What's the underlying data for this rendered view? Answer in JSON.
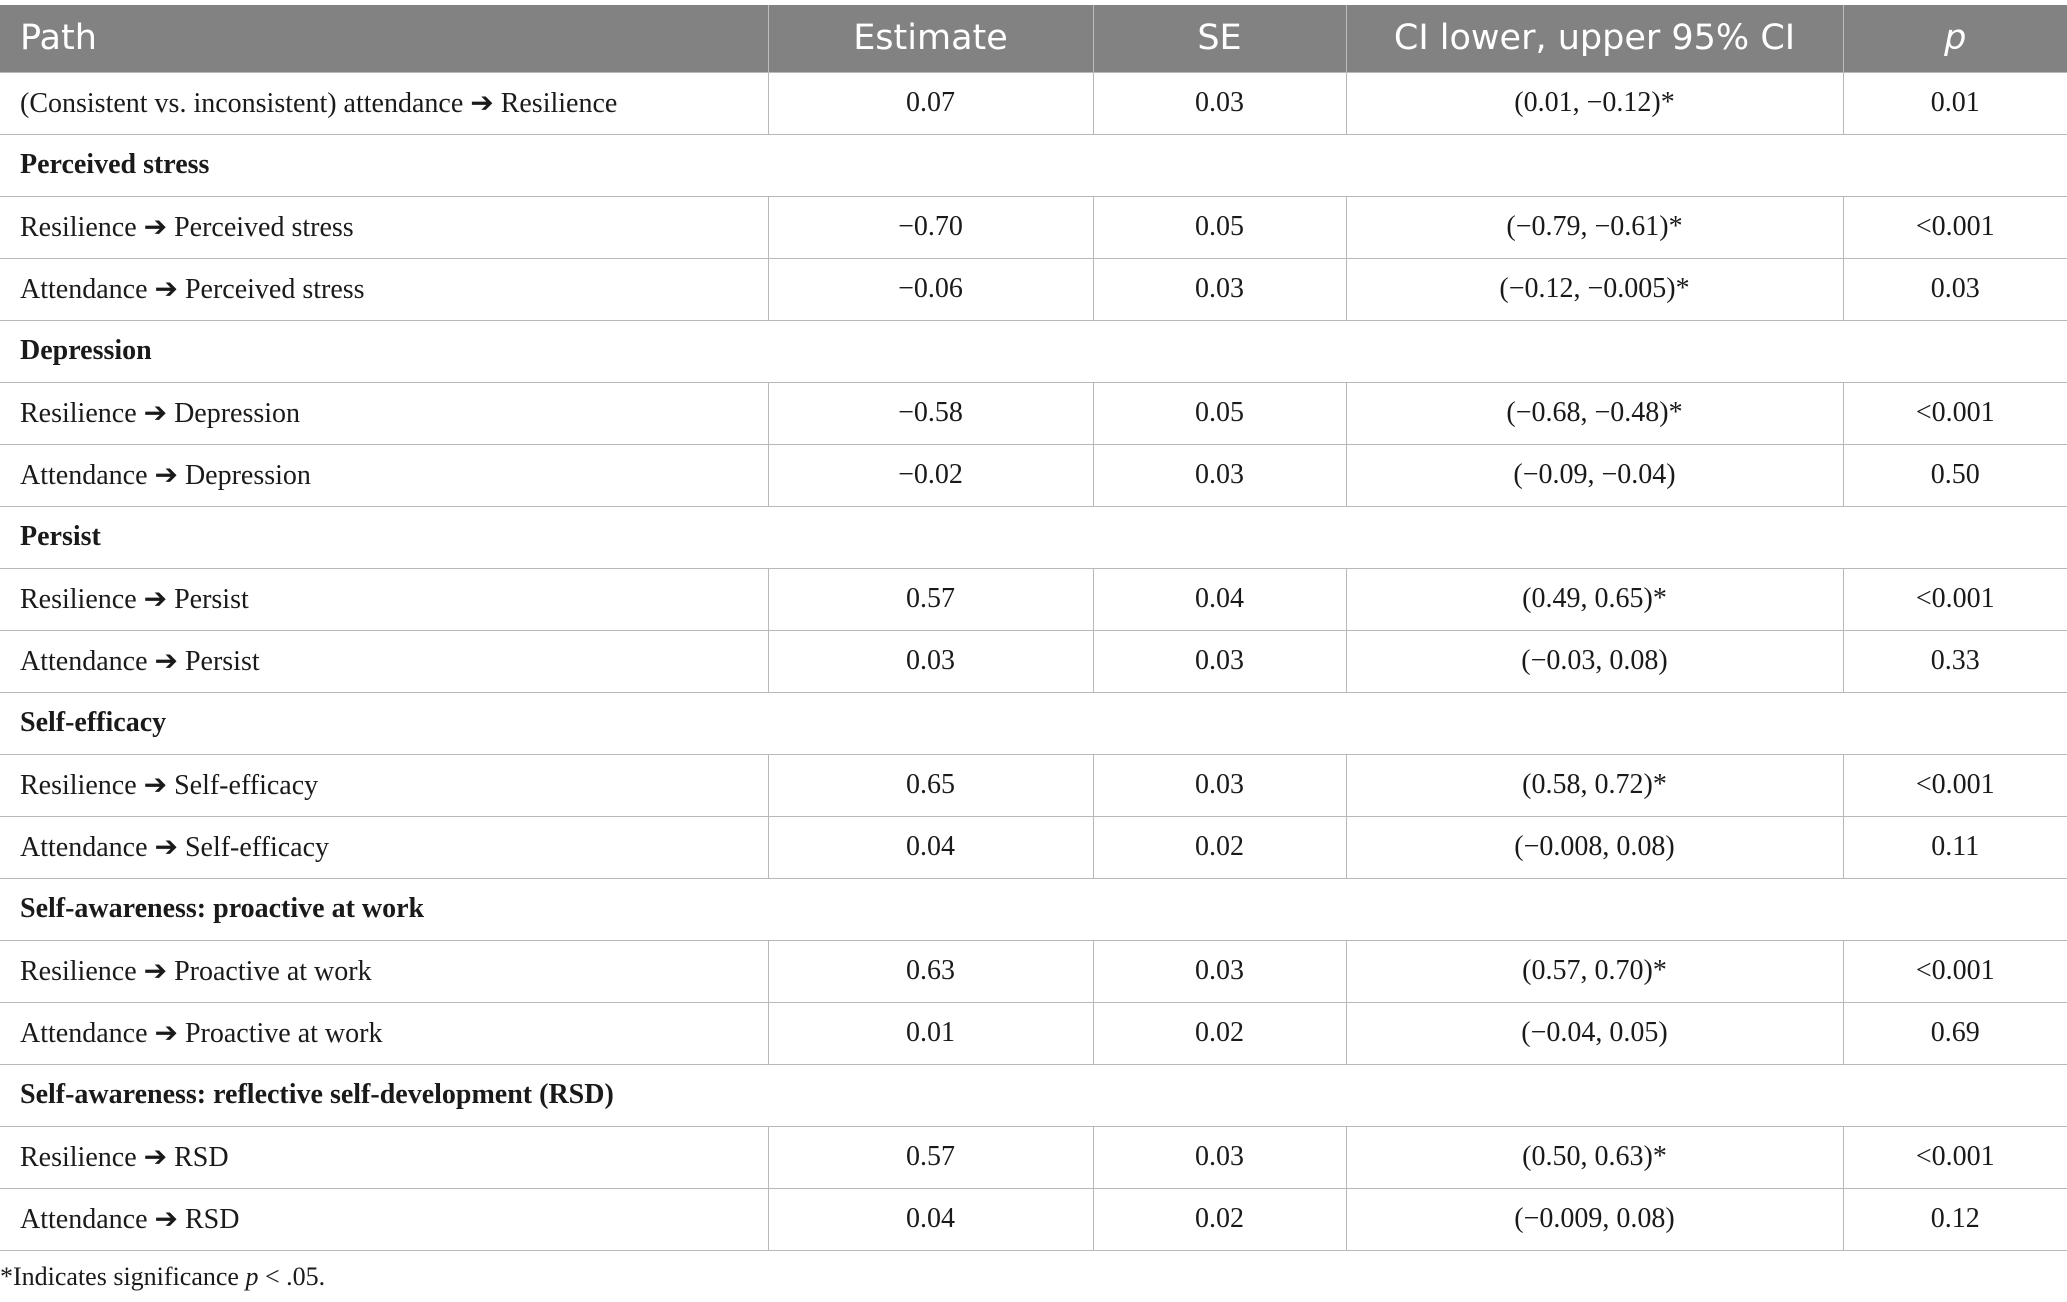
{
  "table": {
    "headers": {
      "path": "Path",
      "estimate": "Estimate",
      "se": "SE",
      "ci": "CI lower, upper 95% CI",
      "p": "p"
    },
    "rows": [
      {
        "type": "data",
        "path": "(Consistent vs. inconsistent) attendance ➔ Resilience",
        "estimate": "0.07",
        "se": "0.03",
        "ci": "(0.01, −0.12)*",
        "p": "0.01"
      },
      {
        "type": "section",
        "label": "Perceived stress"
      },
      {
        "type": "data",
        "path": "Resilience ➔ Perceived stress",
        "estimate": "−0.70",
        "se": "0.05",
        "ci": "(−0.79, −0.61)*",
        "p": "<0.001"
      },
      {
        "type": "data",
        "path": "Attendance ➔ Perceived stress",
        "estimate": "−0.06",
        "se": "0.03",
        "ci": "(−0.12, −0.005)*",
        "p": "0.03"
      },
      {
        "type": "section",
        "label": "Depression"
      },
      {
        "type": "data",
        "path": "Resilience ➔ Depression",
        "estimate": "−0.58",
        "se": "0.05",
        "ci": "(−0.68, −0.48)*",
        "p": "<0.001"
      },
      {
        "type": "data",
        "path": "Attendance ➔ Depression",
        "estimate": "−0.02",
        "se": "0.03",
        "ci": "(−0.09, −0.04)",
        "p": "0.50"
      },
      {
        "type": "section",
        "label": "Persist"
      },
      {
        "type": "data",
        "path": "Resilience ➔ Persist",
        "estimate": "0.57",
        "se": "0.04",
        "ci": "(0.49, 0.65)*",
        "p": "<0.001"
      },
      {
        "type": "data",
        "path": "Attendance ➔ Persist",
        "estimate": "0.03",
        "se": "0.03",
        "ci": "(−0.03, 0.08)",
        "p": "0.33"
      },
      {
        "type": "section",
        "label": "Self-efficacy"
      },
      {
        "type": "data",
        "path": "Resilience ➔ Self-efficacy",
        "estimate": "0.65",
        "se": "0.03",
        "ci": "(0.58, 0.72)*",
        "p": "<0.001"
      },
      {
        "type": "data",
        "path": "Attendance ➔ Self-efficacy",
        "estimate": "0.04",
        "se": "0.02",
        "ci": "(−0.008, 0.08)",
        "p": "0.11"
      },
      {
        "type": "section",
        "label": "Self-awareness: proactive at work"
      },
      {
        "type": "data",
        "path": "Resilience ➔ Proactive at work",
        "estimate": "0.63",
        "se": "0.03",
        "ci": "(0.57, 0.70)*",
        "p": "<0.001"
      },
      {
        "type": "data",
        "path": "Attendance ➔ Proactive at work",
        "estimate": "0.01",
        "se": "0.02",
        "ci": "(−0.04, 0.05)",
        "p": "0.69"
      },
      {
        "type": "section",
        "label": "Self-awareness: reflective self-development (RSD)"
      },
      {
        "type": "data",
        "path": "Resilience ➔ RSD",
        "estimate": "0.57",
        "se": "0.03",
        "ci": "(0.50, 0.63)*",
        "p": "<0.001"
      },
      {
        "type": "data",
        "path": "Attendance ➔ RSD",
        "estimate": "0.04",
        "se": "0.02",
        "ci": "(−0.009, 0.08)",
        "p": "0.12"
      }
    ]
  },
  "footnote": {
    "prefix": "*Indicates significance ",
    "pvar": "p",
    "suffix": " < .05."
  }
}
